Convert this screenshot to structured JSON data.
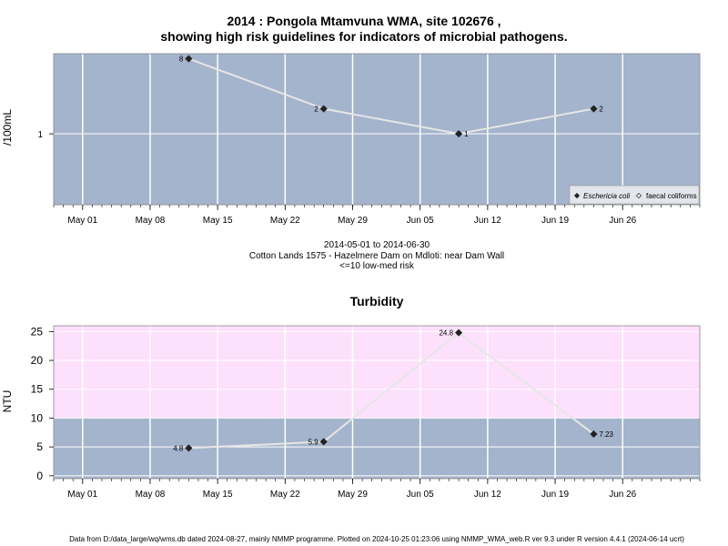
{
  "header": {
    "title_line1": "2014 : Pongola Mtamvuna WMA, site 102676 ,",
    "title_line2": "showing high risk guidelines for indicators of microbial pathogens."
  },
  "info": {
    "date_range": "2014-05-01 to 2014-06-30",
    "location": "Cotton Lands 1575 - Hazelmere Dam on Mdloti: near Dam Wall",
    "risk_note": "<=10 low-med risk"
  },
  "footer": {
    "text": "Data from D:/data_large/wq/wms.db dated 2024-08-27, mainly NMMP programme. Plotted on 2024-10-25 01:23:06 using NMMP_WMA_web.R ver 9.3 under R version 4.4.1 (2024-06-14 ucrt)"
  },
  "colors": {
    "panel_bg": "#a4b4cc",
    "high_risk_band": "#fde0fc",
    "line": "#e6e6e6",
    "grid": "#ffffff",
    "marker": "#222222"
  },
  "chart_data": [
    {
      "type": "line",
      "title": "",
      "ylabel": "/100mL",
      "xlabel": "",
      "y_scale": "log",
      "x_ticks": [
        "May 01",
        "May 08",
        "May 15",
        "May 22",
        "May 29",
        "Jun 05",
        "Jun 12",
        "Jun 19",
        "Jun 26"
      ],
      "y_ticks": [
        "1"
      ],
      "x_range": [
        "2014-04-28",
        "2014-07-04"
      ],
      "series": [
        {
          "name": "Eschericia coli",
          "marker": "filled-diamond",
          "x": [
            "2014-05-12",
            "2014-05-26",
            "2014-06-09",
            "2014-06-23"
          ],
          "values": [
            8,
            2,
            1,
            2
          ],
          "labels": [
            "8",
            "2",
            "1",
            "2"
          ]
        },
        {
          "name": "faecal coliforms",
          "marker": "open-diamond",
          "x": [],
          "values": [],
          "labels": []
        }
      ],
      "legend_position": "bottom-right",
      "grid": true
    },
    {
      "type": "line",
      "title": "Turbidity",
      "ylabel": "NTU",
      "xlabel": "",
      "ylim": [
        -0.5,
        26
      ],
      "high_risk_threshold": 10,
      "y_ticks": [
        "0",
        "5",
        "10",
        "15",
        "20",
        "25"
      ],
      "x_ticks": [
        "May 01",
        "May 08",
        "May 15",
        "May 22",
        "May 29",
        "Jun 05",
        "Jun 12",
        "Jun 19",
        "Jun 26"
      ],
      "x_range": [
        "2014-04-28",
        "2014-07-04"
      ],
      "series": [
        {
          "name": "Turbidity",
          "marker": "filled-diamond",
          "x": [
            "2014-05-12",
            "2014-05-26",
            "2014-06-09",
            "2014-06-23"
          ],
          "values": [
            4.8,
            5.9,
            24.8,
            7.23
          ],
          "labels": [
            "4.8",
            "5.9",
            "24.8",
            "7.23"
          ]
        }
      ],
      "grid": true
    }
  ]
}
